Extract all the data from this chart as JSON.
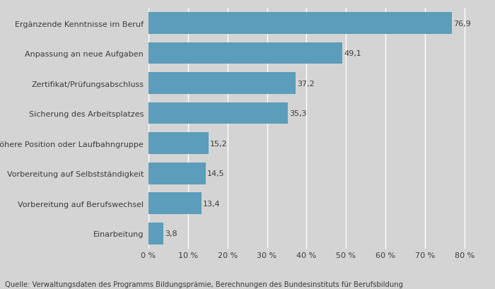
{
  "categories": [
    "Einarbeitung",
    "Vorbereitung auf Berufswechsel",
    "Vorbereitung auf Selbstständigkeit",
    "Höhere Position oder Laufbahngruppe",
    "Sicherung des Arbeitsplatzes",
    "Zertifikat/Prüfungsabschluss",
    "Anpassung an neue Aufgaben",
    "Ergänzende Kenntnisse im Beruf"
  ],
  "values": [
    3.8,
    13.4,
    14.5,
    15.2,
    35.3,
    37.2,
    49.1,
    76.9
  ],
  "bar_color": "#5b9dba",
  "background_color": "#d4d4d4",
  "plot_bg_color": "#d4d4d4",
  "text_color": "#3c3c3c",
  "label_fontsize": 8.0,
  "value_fontsize": 8.0,
  "xlabel_ticks": [
    0,
    10,
    20,
    30,
    40,
    50,
    60,
    70,
    80
  ],
  "xlim": [
    0,
    84
  ],
  "source_text": "Quelle: Verwaltungsdaten des Programms Bildungsprämie, Berechnungen des Bundesinstituts für Berufsbildung"
}
